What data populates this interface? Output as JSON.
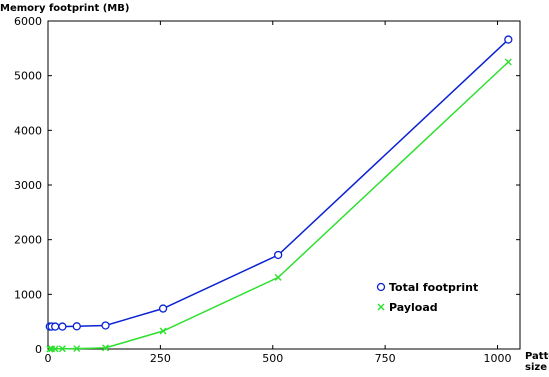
{
  "chart_data": {
    "type": "line",
    "title": "",
    "ylabel": "Memory footprint (MB)",
    "xlabel_lines": [
      "Pattern",
      "size (n)"
    ],
    "xlim": [
      0,
      1050
    ],
    "ylim": [
      0,
      6000
    ],
    "x_ticks": [
      0,
      250,
      500,
      750,
      1000
    ],
    "y_ticks": [
      0,
      1000,
      2000,
      3000,
      4000,
      5000,
      6000
    ],
    "grid": false,
    "legend_position": "lower-right",
    "series": [
      {
        "name": "Total footprint",
        "color": "#0a22d4",
        "marker": "circle",
        "x": [
          4,
          8,
          16,
          32,
          64,
          128,
          256,
          512,
          1024
        ],
        "y": [
          410,
          410,
          410,
          410,
          415,
          430,
          740,
          1720,
          5660
        ]
      },
      {
        "name": "Payload",
        "color": "#2ee02e",
        "marker": "cross",
        "x": [
          4,
          8,
          16,
          32,
          64,
          128,
          256,
          512,
          1024
        ],
        "y": [
          1,
          2,
          3,
          5,
          8,
          20,
          330,
          1310,
          5250
        ]
      }
    ]
  }
}
